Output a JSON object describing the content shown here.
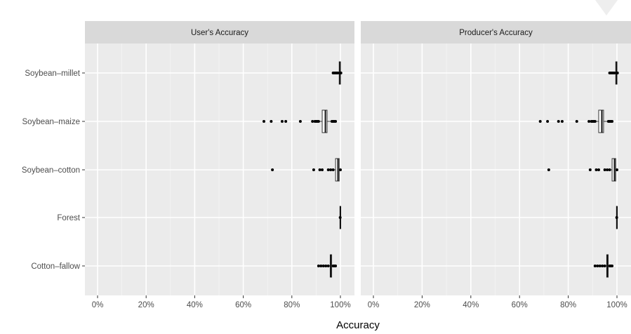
{
  "chart_data": {
    "type": "boxplot",
    "xlabel": "Accuracy",
    "ylabel": "",
    "xlim": [
      0,
      100
    ],
    "x_ticks": [
      "0%",
      "20%",
      "40%",
      "60%",
      "80%",
      "100%"
    ],
    "categories": [
      "Soybean–millet",
      "Soybean–maize",
      "Soybean–cotton",
      "Forest",
      "Cotton–fallow"
    ],
    "facets": [
      {
        "label": "User's Accuracy",
        "boxes": [
          {
            "category": "Soybean–millet",
            "q1": 99.5,
            "median": 99.8,
            "q3": 100,
            "whisker_low": 99,
            "whisker_high": 100,
            "outliers": [
              97.0,
              97.5,
              98.0,
              98.5,
              99.0,
              100.2
            ]
          },
          {
            "category": "Soybean–maize",
            "q1": 92.5,
            "median": 93.8,
            "q3": 94.5,
            "whisker_low": 91,
            "whisker_high": 96,
            "outliers": [
              68.5,
              71.5,
              76.0,
              77.5,
              83.5,
              88.5,
              89.5,
              90.0,
              90.5,
              91.0,
              96.5,
              97.0,
              97.5,
              98.0
            ]
          },
          {
            "category": "Soybean–cotton",
            "q1": 98.0,
            "median": 99.0,
            "q3": 99.5,
            "whisker_low": 97,
            "whisker_high": 100,
            "outliers": [
              72.0,
              89.0,
              91.5,
              92.5,
              95.0,
              96.0,
              97.0,
              100.0
            ]
          },
          {
            "category": "Forest",
            "q1": 99.8,
            "median": 100,
            "q3": 100,
            "whisker_low": 99.8,
            "whisker_high": 100,
            "outliers": [
              99.9
            ]
          },
          {
            "category": "Cotton–fallow",
            "q1": 95.8,
            "median": 96.0,
            "q3": 96.4,
            "whisker_low": 95.5,
            "whisker_high": 96.8,
            "outliers": [
              91.0,
              92.0,
              93.0,
              94.0,
              95.0,
              97.0,
              97.5,
              98.0
            ]
          }
        ]
      },
      {
        "label": "Producer's Accuracy",
        "boxes": [
          {
            "category": "Soybean–millet",
            "q1": 99.5,
            "median": 99.8,
            "q3": 100,
            "whisker_low": 99,
            "whisker_high": 100,
            "outliers": [
              97.0,
              97.5,
              98.0,
              98.5,
              99.0,
              100.2
            ]
          },
          {
            "category": "Soybean–maize",
            "q1": 92.5,
            "median": 93.8,
            "q3": 94.5,
            "whisker_low": 91,
            "whisker_high": 96,
            "outliers": [
              68.5,
              71.5,
              76.0,
              77.5,
              83.5,
              88.5,
              89.5,
              90.0,
              90.5,
              91.0,
              96.5,
              97.0,
              97.5,
              98.0
            ]
          },
          {
            "category": "Soybean–cotton",
            "q1": 98.0,
            "median": 99.0,
            "q3": 99.5,
            "whisker_low": 97,
            "whisker_high": 100,
            "outliers": [
              72.0,
              89.0,
              91.5,
              92.5,
              95.0,
              96.0,
              97.0,
              100.0
            ]
          },
          {
            "category": "Forest",
            "q1": 99.8,
            "median": 100,
            "q3": 100,
            "whisker_low": 99.8,
            "whisker_high": 100,
            "outliers": [
              99.9
            ]
          },
          {
            "category": "Cotton–fallow",
            "q1": 95.8,
            "median": 96.0,
            "q3": 96.4,
            "whisker_low": 95.5,
            "whisker_high": 96.8,
            "outliers": [
              91.0,
              92.0,
              93.0,
              94.0,
              95.0,
              97.0,
              97.5,
              98.0
            ]
          }
        ]
      }
    ],
    "grid": true,
    "legend": "none"
  }
}
